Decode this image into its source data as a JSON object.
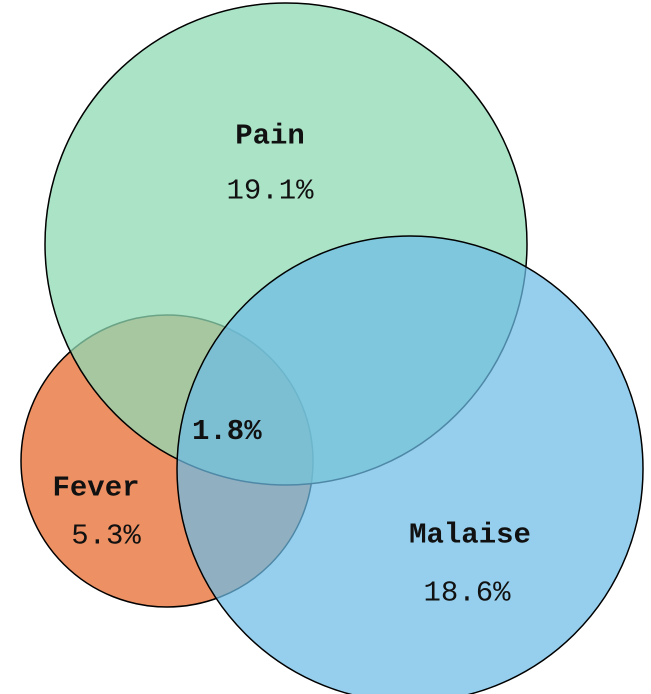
{
  "chart_data": {
    "type": "venn",
    "categories": [
      "Pain",
      "Malaise",
      "Fever"
    ],
    "values": [
      19.1,
      18.6,
      5.3
    ],
    "value_labels": [
      "19.1%",
      "18.6%",
      "5.3%"
    ],
    "colors": [
      "#8fd9b4",
      "#6cbde6",
      "#e8743c"
    ],
    "intersection": {
      "value": 1.8,
      "value_label": "1.8%"
    }
  }
}
